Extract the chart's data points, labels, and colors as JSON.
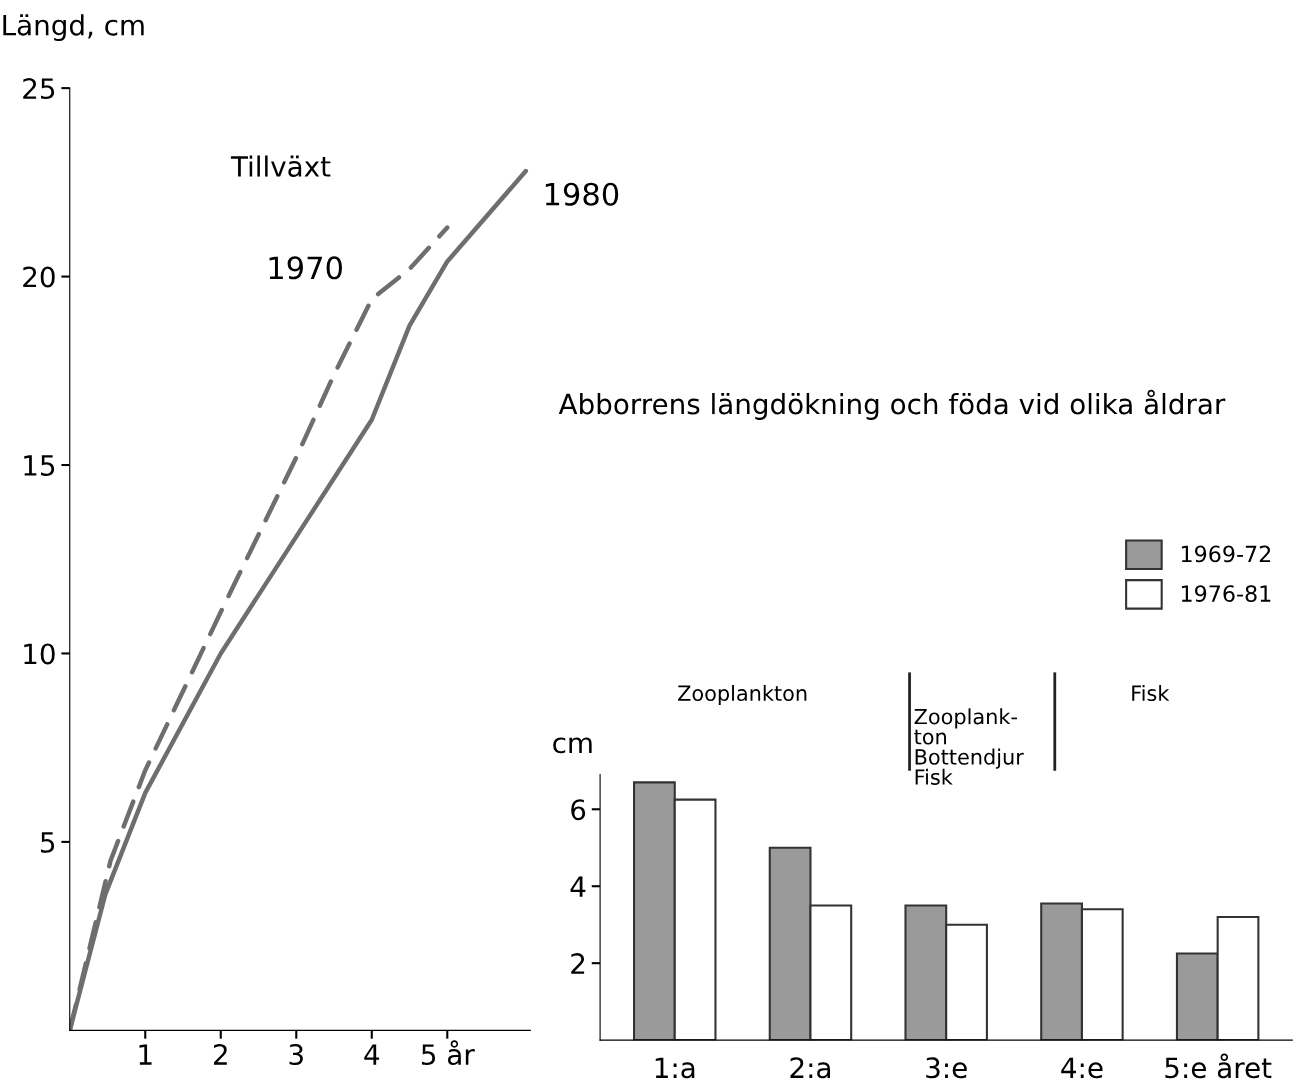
{
  "chart_data": [
    {
      "type": "line",
      "title": "Tillväxt",
      "ylabel": "Längd, cm",
      "xlim": [
        0,
        6.1
      ],
      "ylim": [
        0,
        25
      ],
      "xticks": [
        1,
        2,
        3,
        {
          "value": 4,
          "label": "4"
        },
        {
          "value": 5,
          "label": "5 år"
        }
      ],
      "yticks": [
        5,
        10,
        15,
        20,
        25
      ],
      "grid": false,
      "series": [
        {
          "name": "1970",
          "color": "#6e6e6e",
          "line_style": "dashed",
          "x": [
            0,
            0.54,
            1,
            2,
            3,
            3.5,
            4,
            4.5,
            5.0
          ],
          "values": [
            0,
            4.5,
            6.9,
            11.1,
            15.2,
            17.4,
            19.4,
            20.2,
            21.3
          ]
        },
        {
          "name": "1980",
          "color": "#6e6e6e",
          "line_style": "solid",
          "x": [
            0,
            0.47,
            1,
            2,
            3,
            4,
            4.5,
            5,
            6.04
          ],
          "values": [
            0,
            3.6,
            6.3,
            10.0,
            13.1,
            16.2,
            18.7,
            20.4,
            22.8
          ]
        }
      ]
    },
    {
      "type": "bar",
      "title": "Abborrens längdökning och föda vid olika åldrar",
      "ylabel": "cm",
      "categories": [
        "1:a",
        "2:a",
        "3:e",
        "4:e",
        "5:e året"
      ],
      "ylim": [
        0,
        6.9
      ],
      "yticks": [
        2,
        4,
        6
      ],
      "grid": false,
      "legend": "top right",
      "annotations": [
        "Zooplankton",
        "Zooplank-\nton\nBottendjur\nFisk",
        "Fisk"
      ],
      "series": [
        {
          "name": "1969-72",
          "color": "#9a9a9a",
          "values": [
            6.7,
            5.0,
            3.5,
            3.55,
            2.25
          ]
        },
        {
          "name": "1976-81",
          "color": "#ffffff",
          "values": [
            6.25,
            3.5,
            3.0,
            3.4,
            3.2
          ]
        }
      ]
    }
  ]
}
